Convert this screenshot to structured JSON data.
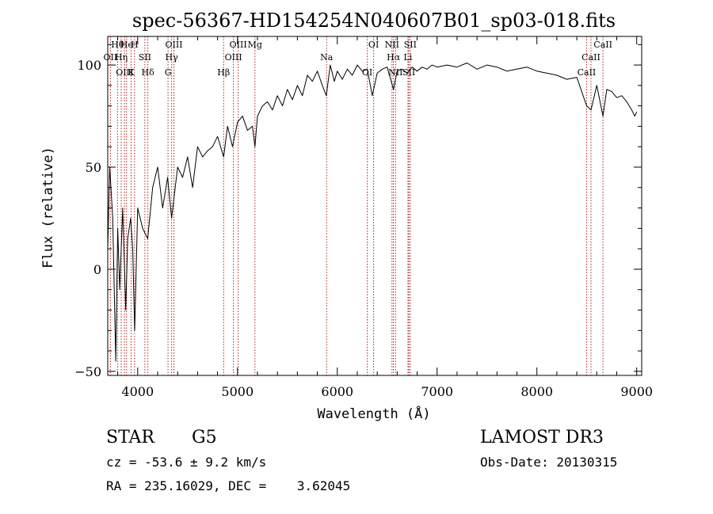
{
  "chart_data": {
    "type": "line",
    "title": "spec-56367-HD154254N040607B01_sp03-018.fits",
    "xlabel": "Wavelength (Å)",
    "ylabel": "Flux (relative)",
    "xlim": [
      3700,
      9050
    ],
    "ylim": [
      -52,
      114
    ],
    "xticks": [
      4000,
      5000,
      6000,
      7000,
      8000,
      9000
    ],
    "yticks": [
      -50,
      0,
      50,
      100
    ],
    "series": [
      {
        "name": "flux",
        "x": [
          3700,
          3720,
          3750,
          3780,
          3800,
          3820,
          3850,
          3880,
          3900,
          3930,
          3950,
          3970,
          4000,
          4050,
          4100,
          4150,
          4200,
          4250,
          4300,
          4340,
          4400,
          4450,
          4500,
          4550,
          4600,
          4650,
          4700,
          4750,
          4800,
          4861,
          4900,
          4950,
          5000,
          5050,
          5100,
          5150,
          5175,
          5200,
          5250,
          5300,
          5350,
          5400,
          5450,
          5500,
          5550,
          5600,
          5650,
          5700,
          5750,
          5800,
          5850,
          5890,
          5930,
          5970,
          6000,
          6050,
          6100,
          6150,
          6200,
          6250,
          6300,
          6350,
          6400,
          6450,
          6500,
          6563,
          6600,
          6650,
          6700,
          6750,
          6800,
          6850,
          6900,
          6950,
          7000,
          7100,
          7200,
          7300,
          7400,
          7500,
          7600,
          7700,
          7800,
          7900,
          8000,
          8100,
          8200,
          8300,
          8400,
          8498,
          8542,
          8600,
          8662,
          8700,
          8750,
          8800,
          8850,
          8900,
          8950,
          8980,
          9000
        ],
        "values": [
          10,
          50,
          25,
          -45,
          20,
          -10,
          30,
          -20,
          15,
          25,
          10,
          -30,
          30,
          20,
          15,
          40,
          50,
          30,
          45,
          25,
          50,
          45,
          55,
          40,
          60,
          55,
          58,
          60,
          65,
          55,
          70,
          60,
          72,
          75,
          68,
          70,
          60,
          75,
          80,
          82,
          78,
          85,
          80,
          88,
          83,
          90,
          85,
          95,
          92,
          97,
          90,
          85,
          100,
          92,
          97,
          93,
          98,
          95,
          100,
          97,
          98,
          85,
          96,
          98,
          99,
          88,
          97,
          98,
          96,
          99,
          97,
          99,
          98,
          100,
          99,
          100,
          99,
          101,
          98,
          100,
          99,
          97,
          98,
          99,
          97,
          96,
          95,
          93,
          94,
          80,
          78,
          90,
          75,
          88,
          87,
          84,
          85,
          82,
          78,
          75,
          77
        ]
      }
    ],
    "line_markers": [
      {
        "label": "Hθ",
        "x": 3798
      },
      {
        "label": "OII",
        "x": 3727
      },
      {
        "label": "OIII",
        "x": 3869
      },
      {
        "label": "He",
        "x": 3889
      },
      {
        "label": "Hη",
        "x": 3835
      },
      {
        "label": "K",
        "x": 3934
      },
      {
        "label": "H",
        "x": 3968
      },
      {
        "label": "SII",
        "x": 4072
      },
      {
        "label": "Hδ",
        "x": 4102
      },
      {
        "label": "OIII",
        "x": 4363
      },
      {
        "label": "Hγ",
        "x": 4340
      },
      {
        "label": "G",
        "x": 4304
      },
      {
        "label": "OIII",
        "x": 5007
      },
      {
        "label": "OIII",
        "x": 4959
      },
      {
        "label": "Hβ",
        "x": 4861
      },
      {
        "label": "Mg",
        "x": 5175
      },
      {
        "label": "Na",
        "x": 5893
      },
      {
        "label": "OI",
        "x": 6300
      },
      {
        "label": "OI",
        "x": 6364
      },
      {
        "label": "Hα",
        "x": 6563
      },
      {
        "label": "SII",
        "x": 6717
      },
      {
        "label": "NII",
        "x": 6548
      },
      {
        "label": "Li",
        "x": 6708
      },
      {
        "label": "NII",
        "x": 6584
      },
      {
        "label": "SII",
        "x": 6731
      },
      {
        "label": "CaII",
        "x": 8542
      },
      {
        "label": "CaII",
        "x": 8498
      },
      {
        "label": "CaII",
        "x": 8662
      }
    ]
  },
  "info": {
    "object_type": "STAR",
    "subclass": "G5",
    "survey": "LAMOST DR3",
    "cz": "cz = -53.6 ± 9.2 km/s",
    "obs_date": "Obs-Date: 20130315",
    "coords": "RA = 235.16029, DEC =    3.62045"
  },
  "colors": {
    "spectrum": "#000000",
    "marker_lines": "#b02020",
    "background": "#ffffff"
  }
}
